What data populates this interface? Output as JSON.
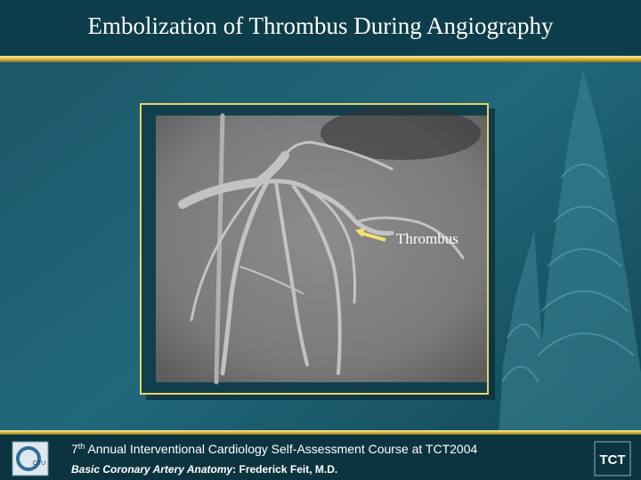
{
  "slide": {
    "title": "Embolization of Thrombus During Angiography",
    "image_label": "Thrombus",
    "footer": {
      "line1_number": "7",
      "line1_superscript": "th",
      "line1_text": " Annual Interventional Cardiology Self-Assessment Course at TCT2004",
      "line2_italic": "Basic Coronary Artery Anatomy",
      "line2_text": ": Frederick Feit, M.D."
    },
    "logo_right": "TCT",
    "logo_left": "CTU"
  }
}
